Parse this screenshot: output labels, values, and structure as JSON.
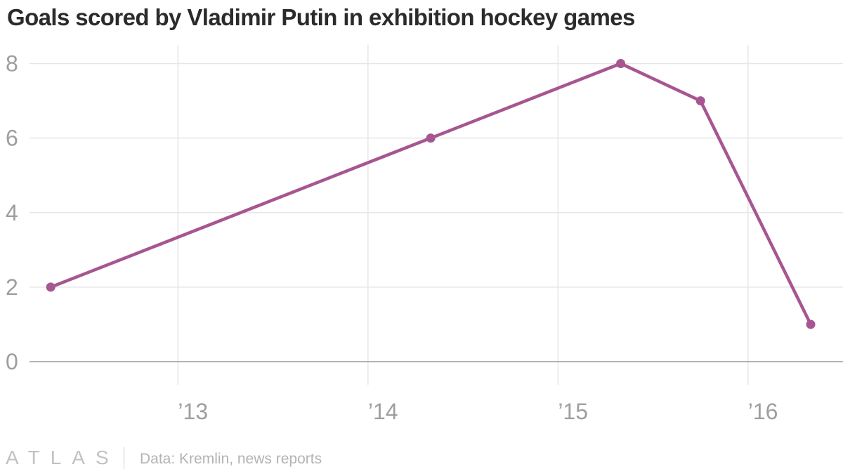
{
  "chart_data": {
    "type": "line",
    "title": "Goals scored by Vladimir Putin in exhibition hockey games",
    "xlabel": "",
    "ylabel": "",
    "series": [
      {
        "name": "Goals",
        "color": "#a65690",
        "points": [
          {
            "x": 2012.33,
            "y": 2
          },
          {
            "x": 2014.33,
            "y": 6
          },
          {
            "x": 2015.33,
            "y": 8
          },
          {
            "x": 2015.75,
            "y": 7
          },
          {
            "x": 2016.33,
            "y": 1
          }
        ]
      }
    ],
    "xlim": [
      2012.1,
      2016.5
    ],
    "ylim": [
      0,
      8.5
    ],
    "x_ticks": [
      {
        "value": 2013,
        "label": "’13"
      },
      {
        "value": 2014,
        "label": "’14"
      },
      {
        "value": 2015,
        "label": "’15"
      },
      {
        "value": 2016,
        "label": "’16"
      }
    ],
    "y_ticks": [
      {
        "value": 0,
        "label": "0"
      },
      {
        "value": 2,
        "label": "2"
      },
      {
        "value": 4,
        "label": "4"
      },
      {
        "value": 6,
        "label": "6"
      },
      {
        "value": 8,
        "label": "8"
      }
    ],
    "grid": true,
    "legend": "none"
  },
  "footer": {
    "logo": "ATLAS",
    "source": "Data: Kremlin, news reports"
  }
}
